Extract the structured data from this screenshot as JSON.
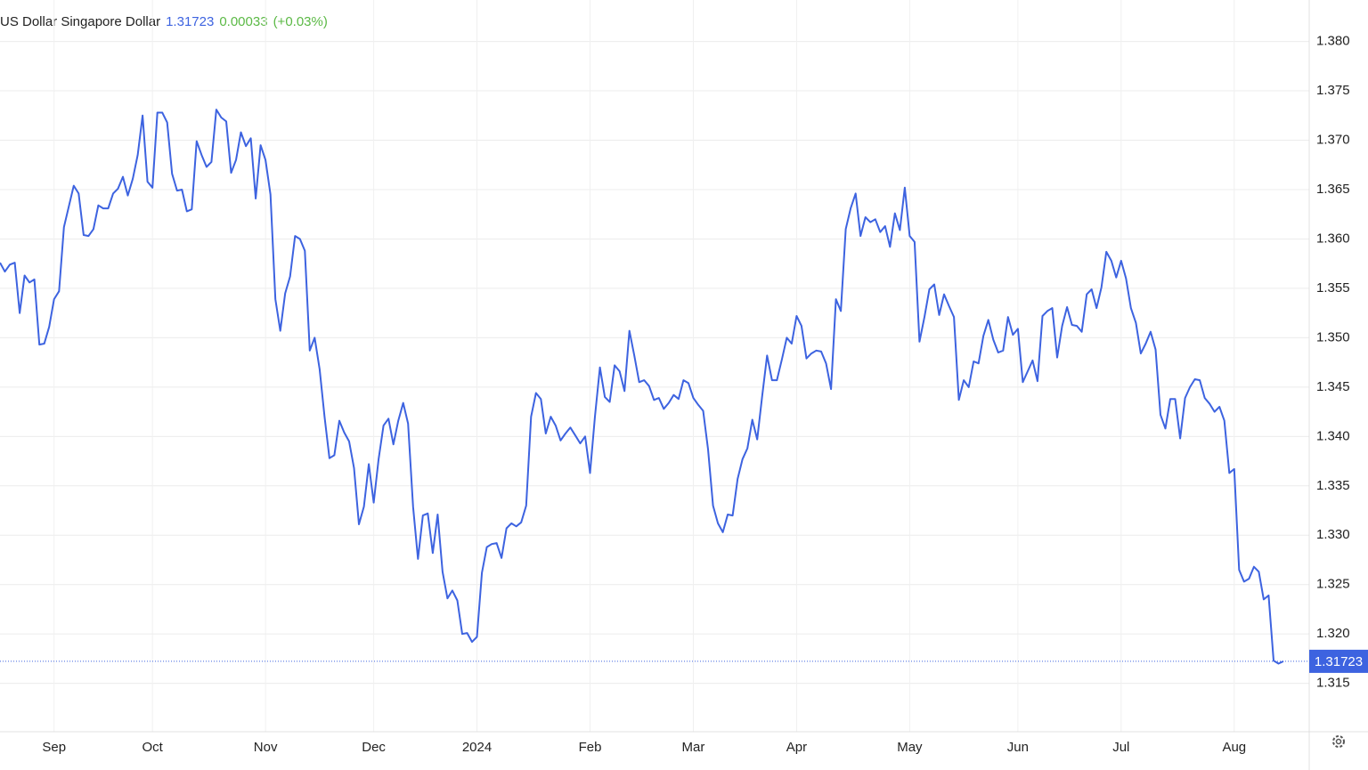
{
  "chart_data": {
    "type": "line",
    "title": "US Dollar Singapore Dollar",
    "price": 1.31723,
    "change": 0.00033,
    "change_label": "(+0.03%)",
    "categories": [
      null,
      null,
      null,
      null,
      null,
      null,
      null,
      null,
      null,
      null,
      null,
      "Sep",
      null,
      null,
      null,
      null,
      null,
      null,
      null,
      null,
      null,
      null,
      null,
      null,
      null,
      null,
      null,
      null,
      null,
      null,
      null,
      "Oct",
      null,
      null,
      null,
      null,
      null,
      null,
      null,
      null,
      null,
      null,
      null,
      null,
      null,
      null,
      null,
      null,
      null,
      null,
      null,
      null,
      null,
      null,
      "Nov",
      null,
      null,
      null,
      null,
      null,
      null,
      null,
      null,
      null,
      null,
      null,
      null,
      null,
      null,
      null,
      null,
      null,
      null,
      null,
      null,
      null,
      "Dec",
      null,
      null,
      null,
      null,
      null,
      null,
      null,
      null,
      null,
      null,
      null,
      null,
      null,
      null,
      null,
      null,
      null,
      null,
      null,
      null,
      "2024",
      null,
      null,
      null,
      null,
      null,
      null,
      null,
      null,
      null,
      null,
      null,
      null,
      null,
      null,
      null,
      null,
      null,
      null,
      null,
      null,
      null,
      null,
      "Feb",
      null,
      null,
      null,
      null,
      null,
      null,
      null,
      null,
      null,
      null,
      null,
      null,
      null,
      null,
      null,
      null,
      null,
      null,
      null,
      null,
      "Mar",
      null,
      null,
      null,
      null,
      null,
      null,
      null,
      null,
      null,
      null,
      null,
      null,
      null,
      null,
      null,
      null,
      null,
      null,
      null,
      null,
      "Apr",
      null,
      null,
      null,
      null,
      null,
      null,
      null,
      null,
      null,
      null,
      null,
      null,
      null,
      null,
      null,
      null,
      null,
      null,
      null,
      null,
      null,
      null,
      "May",
      null,
      null,
      null,
      null,
      null,
      null,
      null,
      null,
      null,
      null,
      null,
      null,
      null,
      null,
      null,
      null,
      null,
      null,
      null,
      null,
      null,
      "Jun",
      null,
      null,
      null,
      null,
      null,
      null,
      null,
      null,
      null,
      null,
      null,
      null,
      null,
      null,
      null,
      null,
      null,
      null,
      null,
      null,
      "Jul",
      null,
      null,
      null,
      null,
      null,
      null,
      null,
      null,
      null,
      null,
      null,
      null,
      null,
      null,
      null,
      null,
      null,
      null,
      null,
      null,
      null,
      null,
      "Aug",
      null,
      null,
      null,
      null,
      null,
      null,
      null,
      null,
      null,
      null
    ],
    "series": [
      {
        "name": "US Dollar Singapore Dollar",
        "color": "#3d63e0",
        "values": [
          1.3576,
          1.3567,
          1.3574,
          1.3576,
          1.3525,
          1.3563,
          1.3556,
          1.3559,
          1.3493,
          1.3494,
          1.3511,
          1.3539,
          1.3547,
          1.3612,
          1.3633,
          1.3654,
          1.3646,
          1.3604,
          1.3603,
          1.361,
          1.3634,
          1.3631,
          1.3631,
          1.3646,
          1.3651,
          1.3663,
          1.3644,
          1.3661,
          1.3685,
          1.3725,
          1.3658,
          1.3652,
          1.3728,
          1.3728,
          1.3718,
          1.3666,
          1.3649,
          1.365,
          1.3628,
          1.363,
          1.3699,
          1.3685,
          1.3673,
          1.3678,
          1.3731,
          1.3723,
          1.3719,
          1.3667,
          1.368,
          1.3708,
          1.3694,
          1.3702,
          1.3641,
          1.3695,
          1.368,
          1.3645,
          1.3539,
          1.3507,
          1.3545,
          1.3562,
          1.3603,
          1.36,
          1.3588,
          1.3487,
          1.35,
          1.3468,
          1.342,
          1.3378,
          1.3381,
          1.3416,
          1.3404,
          1.3395,
          1.3368,
          1.3311,
          1.3329,
          1.3372,
          1.3333,
          1.3377,
          1.3411,
          1.3418,
          1.3392,
          1.3416,
          1.3434,
          1.3413,
          1.3329,
          1.3276,
          1.332,
          1.3322,
          1.3282,
          1.3321,
          1.3263,
          1.3236,
          1.3244,
          1.3234,
          1.32,
          1.3201,
          1.3192,
          1.3197,
          1.3262,
          1.3288,
          1.3291,
          1.3292,
          1.3277,
          1.3307,
          1.3312,
          1.3309,
          1.3313,
          1.333,
          1.342,
          1.3444,
          1.3438,
          1.3403,
          1.342,
          1.3411,
          1.3396,
          1.3403,
          1.3409,
          1.3401,
          1.3393,
          1.34,
          1.3363,
          1.342,
          1.347,
          1.344,
          1.3435,
          1.3472,
          1.3466,
          1.3446,
          1.3507,
          1.3482,
          1.3455,
          1.3457,
          1.3451,
          1.3437,
          1.3439,
          1.3428,
          1.3434,
          1.3442,
          1.3438,
          1.3457,
          1.3454,
          1.3439,
          1.3432,
          1.3426,
          1.3387,
          1.333,
          1.3312,
          1.3303,
          1.3321,
          1.332,
          1.3357,
          1.3377,
          1.3388,
          1.3417,
          1.3397,
          1.3441,
          1.3482,
          1.3457,
          1.3457,
          1.3478,
          1.35,
          1.3494,
          1.3522,
          1.3512,
          1.3479,
          1.3484,
          1.3487,
          1.3486,
          1.3474,
          1.3448,
          1.3539,
          1.3527,
          1.361,
          1.3631,
          1.3646,
          1.3603,
          1.3622,
          1.3617,
          1.362,
          1.3607,
          1.3613,
          1.3592,
          1.3626,
          1.3609,
          1.3652,
          1.3603,
          1.3597,
          1.3496,
          1.3521,
          1.3549,
          1.3554,
          1.3523,
          1.3544,
          1.3532,
          1.3521,
          1.3437,
          1.3457,
          1.345,
          1.3476,
          1.3474,
          1.3502,
          1.3518,
          1.3498,
          1.3485,
          1.3487,
          1.3521,
          1.3503,
          1.3509,
          1.3455,
          1.3466,
          1.3477,
          1.3456,
          1.3522,
          1.3527,
          1.353,
          1.348,
          1.3512,
          1.3531,
          1.3513,
          1.3512,
          1.3506,
          1.3544,
          1.3549,
          1.353,
          1.3551,
          1.3587,
          1.3578,
          1.3561,
          1.3578,
          1.356,
          1.353,
          1.3515,
          1.3484,
          1.3494,
          1.3506,
          1.3488,
          1.3422,
          1.3408,
          1.3438,
          1.3438,
          1.3398,
          1.3439,
          1.345,
          1.3458,
          1.3457,
          1.3439,
          1.3433,
          1.3425,
          1.343,
          1.3416,
          1.3363,
          1.3367,
          1.3265,
          1.3253,
          1.3256,
          1.3268,
          1.3263,
          1.3235,
          1.3239,
          1.3173,
          1.317,
          1.31723
        ]
      }
    ],
    "ylim": [
      1.3101,
      1.3842
    ],
    "yticks": [
      {
        "value": 1.38,
        "label": "1.380"
      },
      1.375,
      {
        "value": 1.37,
        "label": "1.370"
      },
      1.365,
      {
        "value": 1.36,
        "label": "1.360"
      },
      1.355,
      {
        "value": 1.35,
        "label": "1.350"
      },
      1.345,
      {
        "value": 1.34,
        "label": "1.340"
      },
      1.335,
      {
        "value": 1.33,
        "label": "1.330"
      },
      1.325,
      {
        "value": 1.32,
        "label": "1.320"
      },
      1.315
    ],
    "grid": true
  }
}
